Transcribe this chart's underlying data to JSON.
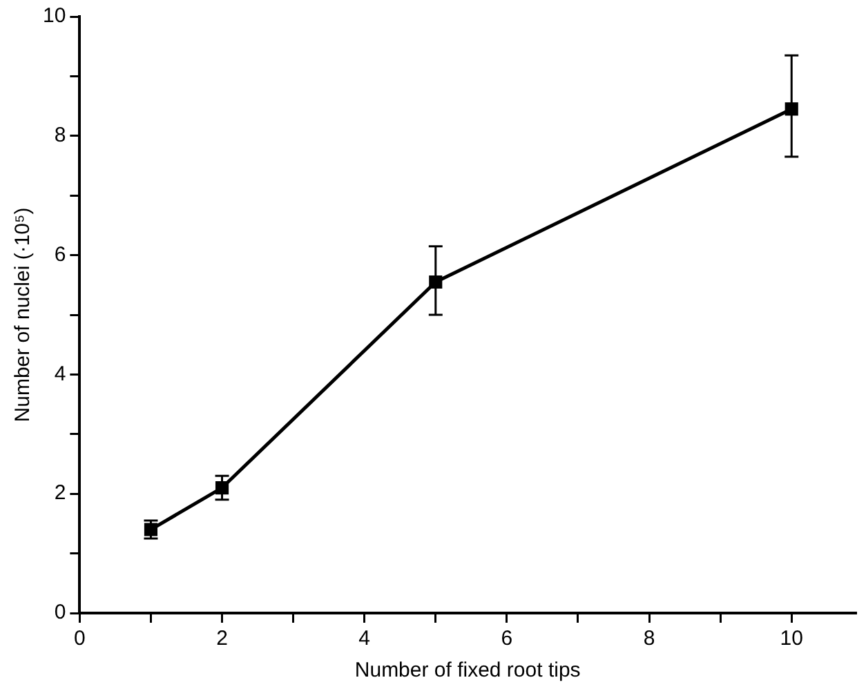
{
  "chart_data": {
    "type": "line",
    "xlabel": "Number of fixed root tips",
    "ylabel": "Number of nuclei (·10⁵)",
    "x": [
      1,
      2,
      5,
      10
    ],
    "series": [
      {
        "color": "#000000",
        "values": [
          1.4,
          2.1,
          5.55,
          8.45
        ],
        "errors": [
          0.15,
          0.2,
          [
            5.0,
            6.15
          ],
          [
            7.65,
            9.35
          ]
        ]
      }
    ],
    "xlim": [
      0,
      10.9
    ],
    "xticks": [
      0,
      {
        "value": 1,
        "label": null
      },
      2,
      {
        "value": 3,
        "label": null
      },
      4,
      {
        "value": 5,
        "label": null
      },
      6,
      {
        "value": 7,
        "label": null
      },
      8,
      {
        "value": 9,
        "label": null
      },
      10
    ],
    "ylim": [
      0,
      10
    ],
    "yticks": [
      0,
      {
        "value": 1,
        "label": null
      },
      2,
      {
        "value": 3,
        "label": null
      },
      4,
      {
        "value": 5,
        "label": null
      },
      6,
      {
        "value": 7,
        "label": null
      },
      8,
      {
        "value": 9,
        "label": null
      },
      10
    ],
    "marker": "square",
    "line_style": "solid",
    "grid": false,
    "legend": false
  }
}
